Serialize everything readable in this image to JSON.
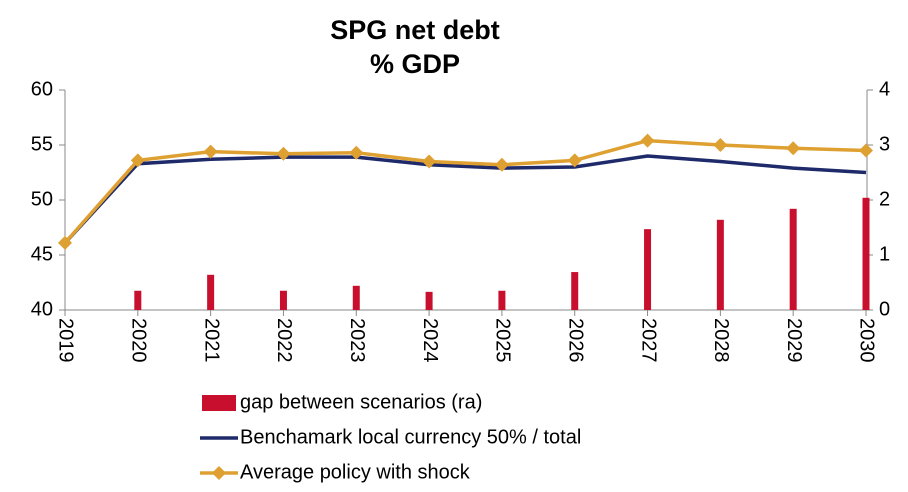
{
  "chart_data": {
    "type": "combo",
    "title": "SPG net debt",
    "subtitle": "% GDP",
    "categories": [
      "2019",
      "2020",
      "2021",
      "2022",
      "2023",
      "2024",
      "2025",
      "2026",
      "2027",
      "2028",
      "2029",
      "2030"
    ],
    "series": [
      {
        "name": "gap between scenarios (ra)",
        "type": "bar",
        "axis": "y2",
        "color": "#c8102e",
        "values": [
          0,
          0.35,
          0.64,
          0.35,
          0.44,
          0.33,
          0.35,
          0.69,
          1.47,
          1.64,
          1.84,
          2.04
        ]
      },
      {
        "name": "Benchamark local currency 50% / total",
        "type": "line",
        "color": "#1f2a6b",
        "values": [
          46.1,
          53.3,
          53.7,
          53.9,
          53.9,
          53.2,
          52.9,
          53.0,
          54.0,
          53.5,
          52.9,
          52.5
        ]
      },
      {
        "name": "Average policy with shock",
        "type": "line",
        "marker": "diamond",
        "color": "#dfa032",
        "values": [
          46.1,
          53.6,
          54.4,
          54.2,
          54.3,
          53.5,
          53.2,
          53.6,
          55.4,
          55.0,
          54.7,
          54.5
        ]
      }
    ],
    "ylim": [
      40,
      60
    ],
    "yticks": [
      40,
      45,
      50,
      55,
      60
    ],
    "y2lim": [
      0,
      4
    ],
    "y2ticks": [
      0,
      1,
      2,
      3,
      4
    ],
    "grid": false
  }
}
